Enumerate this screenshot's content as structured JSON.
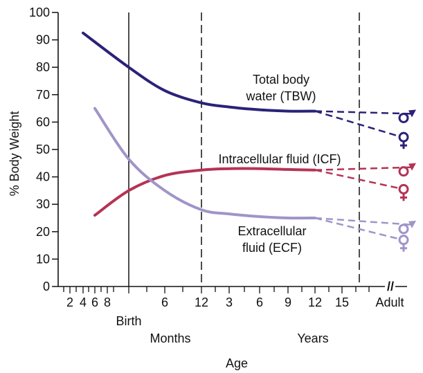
{
  "chart_data": {
    "type": "line",
    "xlabel": "Age",
    "ylabel": "% Body Weight",
    "ylim": [
      0,
      100
    ],
    "y_ticks": [
      "0",
      "10",
      "20",
      "30",
      "40",
      "50",
      "60",
      "70",
      "80",
      "90",
      "100"
    ],
    "x_tick_labels": [
      "2",
      "4",
      "6",
      "8",
      "6",
      "12",
      "3",
      "6",
      "9",
      "12",
      "15",
      "Adult"
    ],
    "x_group_labels": {
      "birth": "Birth",
      "months": "Months",
      "years": "Years"
    },
    "x_axis_break": "//",
    "grid": false,
    "series": [
      {
        "name": "Total body water (TBW)",
        "name_lines": [
          "Total body",
          "water (TBW)"
        ],
        "color": "#2a2278",
        "points": [
          {
            "x": "4 (fetal)",
            "y": 92.5
          },
          {
            "x": "Birth",
            "y": 80
          },
          {
            "x": "6 months",
            "y": 71.5
          },
          {
            "x": "12 months",
            "y": 67
          },
          {
            "x": "3 years",
            "y": 65.5
          },
          {
            "x": "6 years",
            "y": 64.5
          },
          {
            "x": "9 years",
            "y": 64
          },
          {
            "x": "12 years",
            "y": 64
          }
        ],
        "adult_male": 61.5,
        "adult_female": 54.5
      },
      {
        "name": "Intracellular fluid (ICF)",
        "color": "#b53355",
        "points": [
          {
            "x": "6 (fetal)",
            "y": 26
          },
          {
            "x": "Birth",
            "y": 35
          },
          {
            "x": "6 months",
            "y": 40.5
          },
          {
            "x": "12 months",
            "y": 42.5
          },
          {
            "x": "3 years",
            "y": 43
          },
          {
            "x": "6 years",
            "y": 43
          },
          {
            "x": "9 years",
            "y": 42.7
          },
          {
            "x": "12 years",
            "y": 42.5
          }
        ],
        "adult_male": 42,
        "adult_female": 35.5
      },
      {
        "name": "Extracellular fluid (ECF)",
        "name_lines": [
          "Extracellular",
          "fluid (ECF)"
        ],
        "color": "#a094c8",
        "points": [
          {
            "x": "6 (fetal)",
            "y": 65
          },
          {
            "x": "Birth",
            "y": 46.5
          },
          {
            "x": "6 months",
            "y": 35
          },
          {
            "x": "12 months",
            "y": 28
          },
          {
            "x": "3 years",
            "y": 26.5
          },
          {
            "x": "6 years",
            "y": 25.5
          },
          {
            "x": "9 years",
            "y": 25
          },
          {
            "x": "12 years",
            "y": 25
          }
        ],
        "adult_male": 21,
        "adult_female": 17
      }
    ]
  }
}
